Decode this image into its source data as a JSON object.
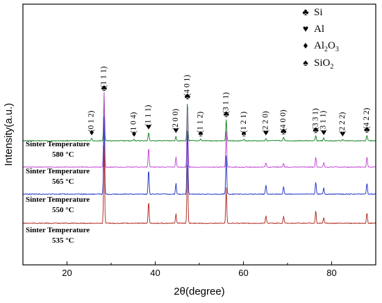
{
  "chart_data": {
    "type": "line",
    "xlabel": "2θ(degree)",
    "ylabel": "Intensity(a.u.)",
    "xlim": [
      10,
      90
    ],
    "x_ticks": [
      20,
      40,
      60,
      80
    ],
    "series": [
      {
        "label_line1": "Sinter Temperature",
        "label_line2": "580 °C",
        "color": "#1f8a2e",
        "peaks": [
          {
            "x": 25.6,
            "h": 0.06
          },
          {
            "x": 28.4,
            "h": 1.0
          },
          {
            "x": 35.2,
            "h": 0.03
          },
          {
            "x": 38.5,
            "h": 0.18
          },
          {
            "x": 44.7,
            "h": 0.1
          },
          {
            "x": 47.3,
            "h": 0.82
          },
          {
            "x": 50.3,
            "h": 0.04
          },
          {
            "x": 56.1,
            "h": 0.45
          },
          {
            "x": 60.1,
            "h": 0.04
          },
          {
            "x": 65.1,
            "h": 0.05
          },
          {
            "x": 69.1,
            "h": 0.08
          },
          {
            "x": 76.4,
            "h": 0.11
          },
          {
            "x": 78.2,
            "h": 0.06
          },
          {
            "x": 82.5,
            "h": 0.03
          },
          {
            "x": 88.0,
            "h": 0.12
          }
        ]
      },
      {
        "label_line1": "Sinter Temperature",
        "label_line2": "565 °C",
        "color": "#c64fd4",
        "peaks": [
          {
            "x": 28.4,
            "h": 1.0
          },
          {
            "x": 38.5,
            "h": 0.26
          },
          {
            "x": 44.7,
            "h": 0.14
          },
          {
            "x": 47.3,
            "h": 0.82
          },
          {
            "x": 56.1,
            "h": 0.48
          },
          {
            "x": 65.1,
            "h": 0.06
          },
          {
            "x": 69.1,
            "h": 0.05
          },
          {
            "x": 76.4,
            "h": 0.14
          },
          {
            "x": 78.2,
            "h": 0.06
          },
          {
            "x": 88.0,
            "h": 0.14
          }
        ]
      },
      {
        "label_line1": "Sinter Temperature",
        "label_line2": "550 °C",
        "color": "#2c3ec9",
        "peaks": [
          {
            "x": 28.4,
            "h": 1.0
          },
          {
            "x": 38.5,
            "h": 0.32
          },
          {
            "x": 44.7,
            "h": 0.14
          },
          {
            "x": 47.3,
            "h": 0.86
          },
          {
            "x": 56.1,
            "h": 0.5
          },
          {
            "x": 65.1,
            "h": 0.12
          },
          {
            "x": 69.1,
            "h": 0.1
          },
          {
            "x": 76.4,
            "h": 0.16
          },
          {
            "x": 78.2,
            "h": 0.08
          },
          {
            "x": 88.0,
            "h": 0.14
          }
        ]
      },
      {
        "label_line1": "Sinter Temperature",
        "label_line2": "535 °C",
        "color": "#b3332b",
        "peaks": [
          {
            "x": 28.4,
            "h": 1.0
          },
          {
            "x": 38.5,
            "h": 0.28
          },
          {
            "x": 44.7,
            "h": 0.12
          },
          {
            "x": 47.3,
            "h": 0.8
          },
          {
            "x": 56.1,
            "h": 0.46
          },
          {
            "x": 65.1,
            "h": 0.1
          },
          {
            "x": 69.1,
            "h": 0.09
          },
          {
            "x": 76.4,
            "h": 0.16
          },
          {
            "x": 78.2,
            "h": 0.07
          },
          {
            "x": 88.0,
            "h": 0.14
          }
        ]
      }
    ],
    "legend": [
      {
        "symbol": "♣",
        "label": "Si"
      },
      {
        "symbol": "♥",
        "label": "Al"
      },
      {
        "symbol": "♦",
        "label": "Al",
        "sub1": "2",
        "mid": "O",
        "sub2": "3"
      },
      {
        "symbol": "♠",
        "label": "SiO",
        "sub1": "2"
      }
    ],
    "legend_position": "top-right",
    "annotations": [
      {
        "x": 25.6,
        "hkl": "(0 1 2)",
        "symbol": "♦"
      },
      {
        "x": 28.4,
        "hkl": "(1 1 1)",
        "symbol": "♣"
      },
      {
        "x": 35.2,
        "hkl": "(1 0 4)",
        "symbol": "♦"
      },
      {
        "x": 38.5,
        "hkl": "(1 1 1)",
        "symbol": "♥"
      },
      {
        "x": 44.7,
        "hkl": "(2 0 0)",
        "symbol": "♥"
      },
      {
        "x": 47.3,
        "hkl": "(4 0 1)",
        "symbol": "♣"
      },
      {
        "x": 50.3,
        "hkl": "(1 1 2)",
        "symbol": "♠"
      },
      {
        "x": 56.1,
        "hkl": "(3 1 1)",
        "symbol": "♣"
      },
      {
        "x": 60.1,
        "hkl": "(1 2 1)",
        "symbol": "♠"
      },
      {
        "x": 65.1,
        "hkl": "(2 2 0)",
        "symbol": "♥"
      },
      {
        "x": 69.1,
        "hkl": "(4 0 0)",
        "symbol": "♣"
      },
      {
        "x": 76.4,
        "hkl": "(3 3 1)",
        "symbol": "♣"
      },
      {
        "x": 78.2,
        "hkl": "(3 1 1)",
        "symbol": "♥"
      },
      {
        "x": 82.5,
        "hkl": "(2 2 2)",
        "symbol": "♥"
      },
      {
        "x": 88.0,
        "hkl": "(4 2 2)",
        "symbol": "♣"
      }
    ]
  }
}
